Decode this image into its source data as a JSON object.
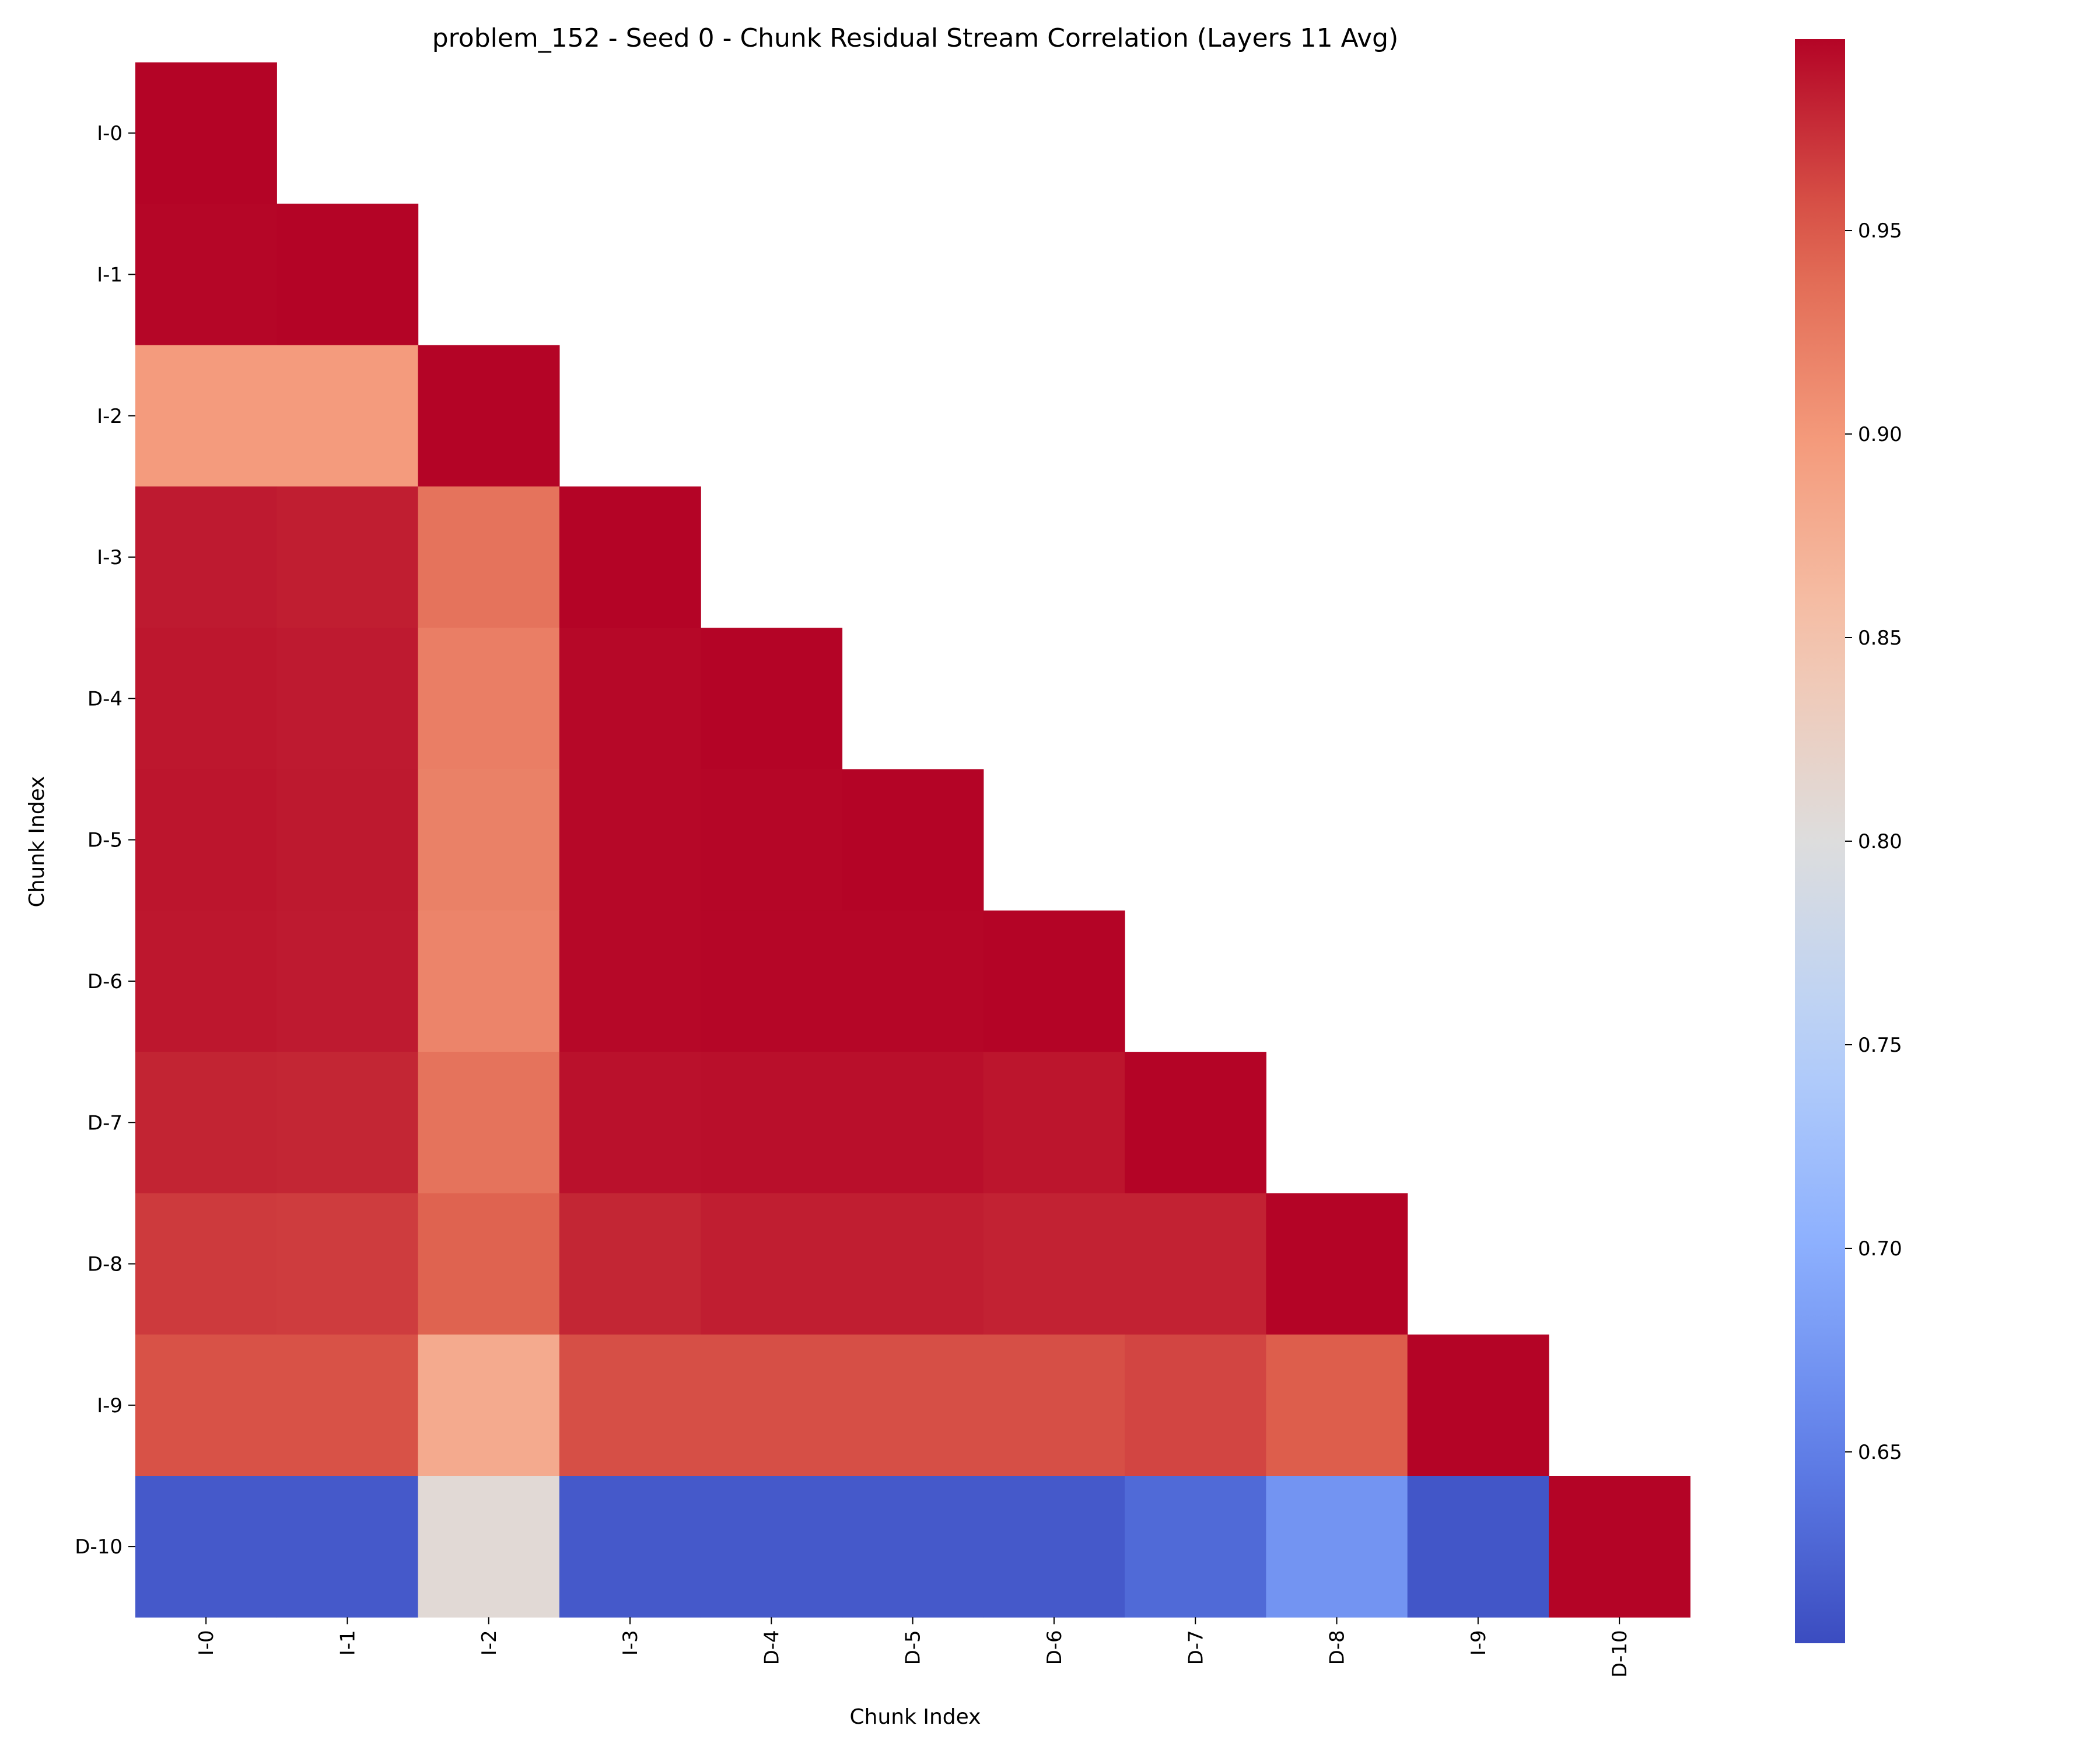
{
  "chart_data": {
    "type": "heatmap",
    "title": "problem_152 - Seed 0 - Chunk Residual Stream Correlation (Layers 11 Avg)",
    "xlabel": "Chunk Index",
    "ylabel": "Chunk Index",
    "categories": [
      "I-0",
      "I-1",
      "I-2",
      "I-3",
      "D-4",
      "D-5",
      "D-6",
      "D-7",
      "D-8",
      "I-9",
      "D-10"
    ],
    "mask": "upper-triangle-excluding-diagonal",
    "colormap": "coolwarm",
    "vmin": 0.603,
    "vmax": 0.997,
    "colorbar_ticks": [
      0.65,
      0.7,
      0.75,
      0.8,
      0.85,
      0.9,
      0.95
    ],
    "colorbar_tick_labels": [
      "0.65",
      "0.70",
      "0.75",
      "0.80",
      "0.85",
      "0.90",
      "0.95"
    ],
    "values": [
      [
        0.997
      ],
      [
        0.996,
        0.997
      ],
      [
        0.897,
        0.897,
        0.997
      ],
      [
        0.985,
        0.983,
        0.932,
        0.997
      ],
      [
        0.987,
        0.985,
        0.922,
        0.995,
        0.997
      ],
      [
        0.988,
        0.986,
        0.92,
        0.995,
        0.996,
        0.997
      ],
      [
        0.987,
        0.985,
        0.917,
        0.995,
        0.996,
        0.996,
        0.997
      ],
      [
        0.98,
        0.979,
        0.932,
        0.99,
        0.991,
        0.991,
        0.988,
        0.997
      ],
      [
        0.968,
        0.967,
        0.945,
        0.979,
        0.983,
        0.983,
        0.981,
        0.981,
        0.997
      ],
      [
        0.955,
        0.955,
        0.88,
        0.957,
        0.957,
        0.957,
        0.957,
        0.962,
        0.949,
        0.997
      ],
      [
        0.615,
        0.615,
        0.808,
        0.615,
        0.615,
        0.615,
        0.615,
        0.63,
        0.672,
        0.612,
        0.997
      ]
    ]
  }
}
